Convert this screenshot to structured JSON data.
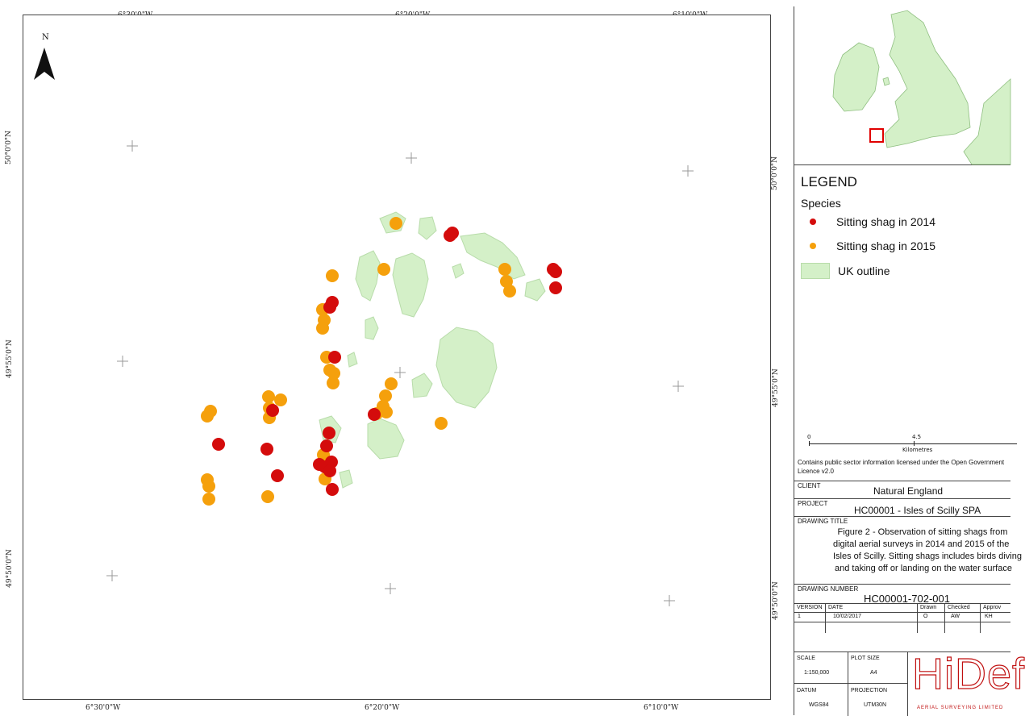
{
  "top_coords": [
    "6°30'0\"W",
    "6°20'0\"W",
    "6°10'0\"W"
  ],
  "bottom_coords": [
    "6°30'0\"W",
    "6°20'0\"W",
    "6°10'0\"W"
  ],
  "left_coords": [
    "50°0'0\"N",
    "49°55'0\"N",
    "49°50'0\"N"
  ],
  "right_coords": [
    "50°0'0\"N",
    "49°55'0\"N",
    "49°50'0\"N"
  ],
  "north_label": "N",
  "colors": {
    "shag_2014": "#d40c0c",
    "shag_2015": "#f5a00c",
    "land": "#d4f0c8",
    "land_stroke": "#b8dcaa",
    "inset_box": "#e00000"
  },
  "legend": {
    "title": "LEGEND",
    "subtitle": "Species",
    "items": [
      {
        "label": "Sitting shag in 2014",
        "symbol": "red-dot"
      },
      {
        "label": "Sitting shag in 2015",
        "symbol": "orange-dot"
      },
      {
        "label": "UK outline",
        "symbol": "green-patch"
      }
    ]
  },
  "scale": {
    "ticks": [
      "0",
      "4.5"
    ],
    "unit": "Kilometres"
  },
  "licence": "Contains public sector information licensed under the Open Government Licence v2.0",
  "title_block": {
    "client_label": "CLIENT",
    "client": "Natural England",
    "project_label": "PROJECT",
    "project": "HC00001 - Isles of Scilly SPA",
    "drawing_title_label": "DRAWING TITLE",
    "drawing_title": "Figure 2 - Observation of sitting shags from digital aerial surveys in 2014 and 2015 of the Isles of Scilly. Sitting shags includes birds diving and taking off or landing on the water surface",
    "drawing_number_label": "DRAWING NUMBER",
    "drawing_number": "HC00001-702-001",
    "version_label": "VERSION",
    "version": "1",
    "date_label": "DATE",
    "date": "10/02/2017",
    "drawn_label": "Drawn",
    "drawn": "O",
    "checked_label": "Checked",
    "checked": "AW",
    "approved_label": "Approv",
    "approved": "KH",
    "scale_label": "SCALE",
    "scale": "1:150,000",
    "plot_size_label": "PLOT SIZE",
    "plot_size": "A4",
    "datum_label": "DATUM",
    "datum": "WGS84",
    "projection_label": "PROJECTION",
    "projection": "UTM30N",
    "logo_text": "HiDef",
    "logo_sub": "AERIAL SURVEYING LIMITED"
  },
  "observations_2014": [
    [
      560,
      288
    ],
    [
      557,
      291
    ],
    [
      685,
      333
    ],
    [
      688,
      336
    ],
    [
      688,
      356
    ],
    [
      411,
      374
    ],
    [
      408,
      380
    ],
    [
      414,
      442
    ],
    [
      463,
      513
    ],
    [
      337,
      508
    ],
    [
      270,
      550
    ],
    [
      330,
      556
    ],
    [
      343,
      589
    ],
    [
      407,
      536
    ],
    [
      404,
      552
    ],
    [
      395,
      575
    ],
    [
      402,
      578
    ],
    [
      410,
      572
    ],
    [
      408,
      583
    ],
    [
      411,
      606
    ]
  ],
  "observations_2015": [
    [
      490,
      276
    ],
    [
      475,
      333
    ],
    [
      411,
      341
    ],
    [
      625,
      333
    ],
    [
      627,
      348
    ],
    [
      631,
      360
    ],
    [
      399,
      383
    ],
    [
      401,
      396
    ],
    [
      399,
      406
    ],
    [
      404,
      442
    ],
    [
      408,
      458
    ],
    [
      413,
      462
    ],
    [
      412,
      474
    ],
    [
      332,
      491
    ],
    [
      347,
      495
    ],
    [
      333,
      505
    ],
    [
      333,
      517
    ],
    [
      260,
      509
    ],
    [
      256,
      515
    ],
    [
      484,
      475
    ],
    [
      477,
      490
    ],
    [
      474,
      503
    ],
    [
      478,
      510
    ],
    [
      466,
      512
    ],
    [
      546,
      524
    ],
    [
      400,
      563
    ],
    [
      402,
      593
    ],
    [
      256,
      594
    ],
    [
      258,
      602
    ],
    [
      258,
      618
    ],
    [
      331,
      615
    ]
  ]
}
